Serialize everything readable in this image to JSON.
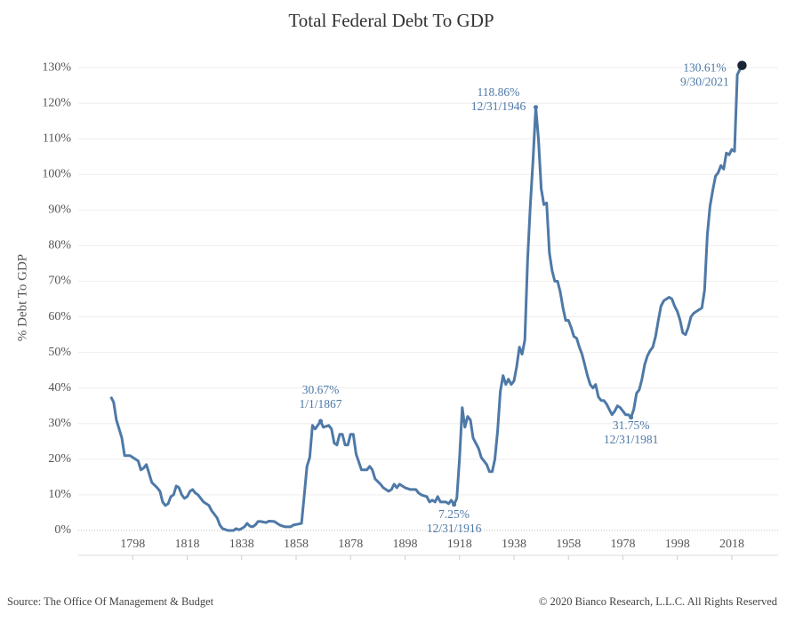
{
  "chart_data": {
    "type": "line",
    "title": "Total Federal Debt To GDP",
    "y_label": "% Debt To GDP",
    "color": "#4e79a7",
    "x": [
      1790,
      1791,
      1792,
      1794,
      1795,
      1797,
      1799,
      1800,
      1801,
      1802,
      1803,
      1805,
      1807,
      1808,
      1809,
      1810,
      1811,
      1812,
      1813,
      1814,
      1815,
      1816,
      1817,
      1818,
      1819,
      1820,
      1821,
      1822,
      1823,
      1824,
      1826,
      1827,
      1829,
      1830,
      1831,
      1833,
      1835,
      1836,
      1837,
      1838,
      1839,
      1840,
      1841,
      1842,
      1843,
      1844,
      1845,
      1847,
      1848,
      1850,
      1851,
      1852,
      1854,
      1856,
      1857,
      1859,
      1860,
      1861,
      1862,
      1863,
      1864,
      1865,
      1867,
      1868,
      1870,
      1871,
      1872,
      1873,
      1874,
      1875,
      1876,
      1877,
      1878,
      1879,
      1880,
      1882,
      1884,
      1885,
      1886,
      1887,
      1889,
      1890,
      1892,
      1893,
      1894,
      1895,
      1896,
      1898,
      1900,
      1902,
      1903,
      1904,
      1906,
      1907,
      1908,
      1909,
      1910,
      1911,
      1913,
      1914,
      1915,
      1916,
      1917,
      1918,
      1919,
      1920,
      1921,
      1922,
      1923,
      1925,
      1926,
      1928,
      1929,
      1930,
      1931,
      1932,
      1933,
      1934,
      1935,
      1936,
      1937,
      1938,
      1939,
      1940,
      1941,
      1942,
      1943,
      1944,
      1945,
      1946,
      1947,
      1948,
      1949,
      1950,
      1951,
      1952,
      1953,
      1954,
      1955,
      1956,
      1957,
      1958,
      1959,
      1960,
      1961,
      1962,
      1963,
      1964,
      1965,
      1966,
      1967,
      1968,
      1969,
      1970,
      1971,
      1972,
      1973,
      1974,
      1975,
      1976,
      1977,
      1978,
      1979,
      1980,
      1981,
      1982,
      1983,
      1984,
      1985,
      1986,
      1987,
      1988,
      1989,
      1990,
      1991,
      1992,
      1993,
      1994,
      1995,
      1996,
      1997,
      1998,
      1999,
      2000,
      2001,
      2002,
      2003,
      2004,
      2005,
      2006,
      2007,
      2008,
      2009,
      2010,
      2011,
      2012,
      2013,
      2014,
      2015,
      2016,
      2017,
      2018,
      2019,
      2020,
      2021.75
    ],
    "values": [
      37.5,
      36,
      31,
      26,
      21,
      21,
      20,
      19.5,
      17,
      17.5,
      18.5,
      13.5,
      12,
      11,
      8,
      7,
      7.5,
      9.5,
      10,
      12.5,
      12,
      10,
      9,
      9.5,
      11,
      11.5,
      10.5,
      10,
      9,
      8,
      7,
      5.5,
      3.5,
      1.5,
      0.5,
      0,
      0,
      0.5,
      0.2,
      0.5,
      1,
      2,
      1.2,
      1,
      1.5,
      2.5,
      2.5,
      2.2,
      2.6,
      2.5,
      2,
      1.5,
      1,
      1,
      1.5,
      1.8,
      2,
      10,
      18,
      20.5,
      29.5,
      28.5,
      30.67,
      29,
      29.5,
      28.5,
      24.5,
      24,
      27,
      27,
      24,
      24,
      27,
      27,
      21.5,
      17,
      17,
      18,
      17,
      14.5,
      13,
      12,
      11,
      11.5,
      13,
      12,
      13,
      12,
      11.5,
      11.5,
      10.5,
      10,
      9.5,
      8,
      8.5,
      8,
      9.5,
      8,
      8,
      7.5,
      8.5,
      7.25,
      9,
      20,
      34.5,
      29,
      32,
      31,
      26,
      23,
      20.5,
      18.5,
      16.5,
      16.5,
      20,
      28,
      39,
      43.5,
      41,
      42.5,
      41,
      42,
      46,
      51.5,
      49.5,
      53.5,
      76,
      91,
      104,
      118.86,
      110,
      96,
      91.5,
      92,
      78,
      73,
      70,
      70,
      67,
      62.5,
      59,
      59,
      57,
      54.5,
      54,
      51.5,
      49.5,
      46.5,
      43.5,
      41,
      40,
      41,
      37.5,
      36.5,
      36.5,
      35.5,
      34,
      32.5,
      33.5,
      35,
      34.5,
      33.5,
      32.5,
      32.5,
      31.75,
      34,
      38.5,
      39.5,
      42.5,
      46.5,
      49,
      50.5,
      51.5,
      54.5,
      59,
      63,
      64.5,
      65,
      65.5,
      65,
      63,
      61.5,
      59,
      55.5,
      55,
      57,
      60,
      61,
      61.5,
      62,
      62.5,
      67.5,
      83,
      91,
      95.5,
      99.5,
      100.5,
      102.5,
      101.5,
      106,
      105.5,
      107,
      106.5,
      128,
      130.61
    ],
    "xlim": [
      1778,
      2035
    ],
    "ylim": [
      -7,
      139
    ],
    "xticks": [
      1798,
      1818,
      1838,
      1858,
      1878,
      1898,
      1918,
      1938,
      1958,
      1978,
      1998,
      2018
    ],
    "yticks": [
      {
        "value": 0,
        "label": "0%"
      },
      {
        "value": 10,
        "label": "10%"
      },
      {
        "value": 20,
        "label": "20%"
      },
      {
        "value": 30,
        "label": "30%"
      },
      {
        "value": 40,
        "label": "40%"
      },
      {
        "value": 50,
        "label": "50%"
      },
      {
        "value": 60,
        "label": "60%"
      },
      {
        "value": 70,
        "label": "70%"
      },
      {
        "value": 80,
        "label": "80%"
      },
      {
        "value": 90,
        "label": "90%"
      },
      {
        "value": 100,
        "label": "100%"
      },
      {
        "value": 110,
        "label": "110%"
      },
      {
        "value": 120,
        "label": "120%"
      },
      {
        "value": 130,
        "label": "130%"
      }
    ],
    "grid": true,
    "annotations": [
      {
        "lines": [
          "30.67%",
          "1/1/1867"
        ],
        "x": 1867,
        "y": 30.67
      },
      {
        "lines": [
          "7.25%",
          "12/31/1916"
        ],
        "x": 1916,
        "y": 7.25
      },
      {
        "lines": [
          "118.86%",
          "12/31/1946"
        ],
        "x": 1946,
        "y": 118.86
      },
      {
        "lines": [
          "31.75%",
          "12/31/1981"
        ],
        "x": 1981,
        "y": 31.75
      },
      {
        "lines": [
          "130.61%",
          "9/30/2021"
        ],
        "x": 2021.75,
        "y": 130.61
      }
    ]
  },
  "source": "Source: The Office Of Management & Budget",
  "copyright": "© 2020 Bianco Research, L.L.C. All Rights Reserved"
}
